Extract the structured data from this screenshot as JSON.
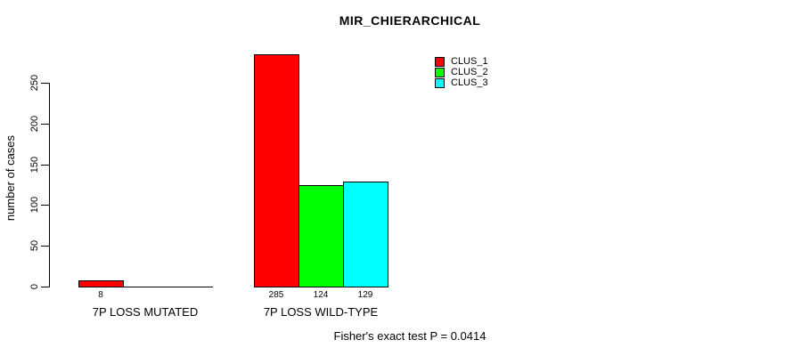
{
  "chart_data": {
    "type": "bar",
    "title": "MIR_CHIERARCHICAL",
    "ylabel": "number of cases",
    "xlabel": "",
    "ylim": [
      0,
      250
    ],
    "yticks": [
      0,
      50,
      100,
      150,
      200,
      250
    ],
    "grid": false,
    "legend_position": "top-right",
    "categories": [
      "7P LOSS MUTATED",
      "7P LOSS WILD-TYPE"
    ],
    "series": [
      {
        "name": "CLUS_1",
        "color": "#FF0000",
        "values": [
          8,
          285
        ]
      },
      {
        "name": "CLUS_2",
        "color": "#00FF00",
        "values": [
          0,
          124
        ]
      },
      {
        "name": "CLUS_3",
        "color": "#00FFFF",
        "values": [
          0,
          129
        ]
      }
    ],
    "shown_value_labels": [
      "8",
      "285",
      "124",
      "129"
    ],
    "annotation": "Fisher's exact test P = 0.0414"
  },
  "colors": {
    "background": "#FFFFFF",
    "axis": "#000000",
    "bar_border": "#000000",
    "text": "#000000"
  }
}
